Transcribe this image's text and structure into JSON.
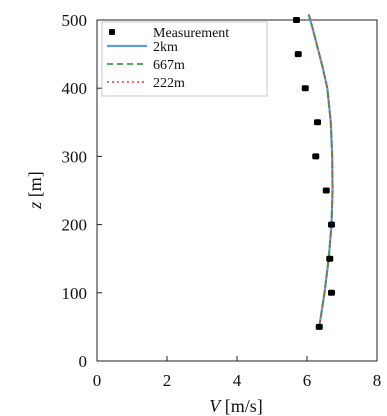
{
  "chart_data": {
    "type": "line",
    "xlabel_symbol": "V",
    "xlabel_unit": " [m/s]",
    "ylabel_symbol": "z",
    "ylabel_unit": " [m]",
    "xlim": [
      0,
      8
    ],
    "ylim": [
      0,
      500
    ],
    "x_ticks": [
      0,
      2,
      4,
      6,
      8
    ],
    "y_ticks": [
      0,
      100,
      200,
      300,
      400,
      500
    ],
    "grid": false,
    "legend_position": "top-left",
    "measurement": {
      "name": "Measurement",
      "color": "#000000",
      "points": [
        {
          "x": 6.35,
          "y": 50
        },
        {
          "x": 6.7,
          "y": 100
        },
        {
          "x": 6.65,
          "y": 150
        },
        {
          "x": 6.7,
          "y": 200
        },
        {
          "x": 6.55,
          "y": 250
        },
        {
          "x": 6.25,
          "y": 300
        },
        {
          "x": 6.3,
          "y": 350
        },
        {
          "x": 5.95,
          "y": 400
        },
        {
          "x": 5.75,
          "y": 450
        },
        {
          "x": 5.7,
          "y": 500
        }
      ]
    },
    "series": [
      {
        "name": "2km",
        "color": "#5aa0d6",
        "dash": "solid",
        "x": [
          6.35,
          6.5,
          6.62,
          6.7,
          6.73,
          6.72,
          6.68,
          6.58,
          6.45,
          6.3,
          6.15,
          6.05
        ],
        "y": [
          50,
          100,
          150,
          200,
          250,
          300,
          350,
          400,
          430,
          460,
          490,
          510
        ]
      },
      {
        "name": "667m",
        "color": "#3aa33a",
        "dash": "dashed",
        "x": [
          6.35,
          6.5,
          6.62,
          6.7,
          6.73,
          6.72,
          6.68,
          6.58,
          6.45,
          6.3,
          6.15,
          6.05
        ],
        "y": [
          50,
          100,
          150,
          200,
          250,
          300,
          350,
          400,
          430,
          460,
          490,
          510
        ]
      },
      {
        "name": "222m",
        "color": "#d04040",
        "dash": "dotted",
        "x": [
          6.35,
          6.5,
          6.62,
          6.7,
          6.73,
          6.72,
          6.68,
          6.58,
          6.45,
          6.3,
          6.15,
          6.05
        ],
        "y": [
          50,
          100,
          150,
          200,
          250,
          300,
          350,
          400,
          430,
          460,
          490,
          510
        ]
      }
    ]
  }
}
